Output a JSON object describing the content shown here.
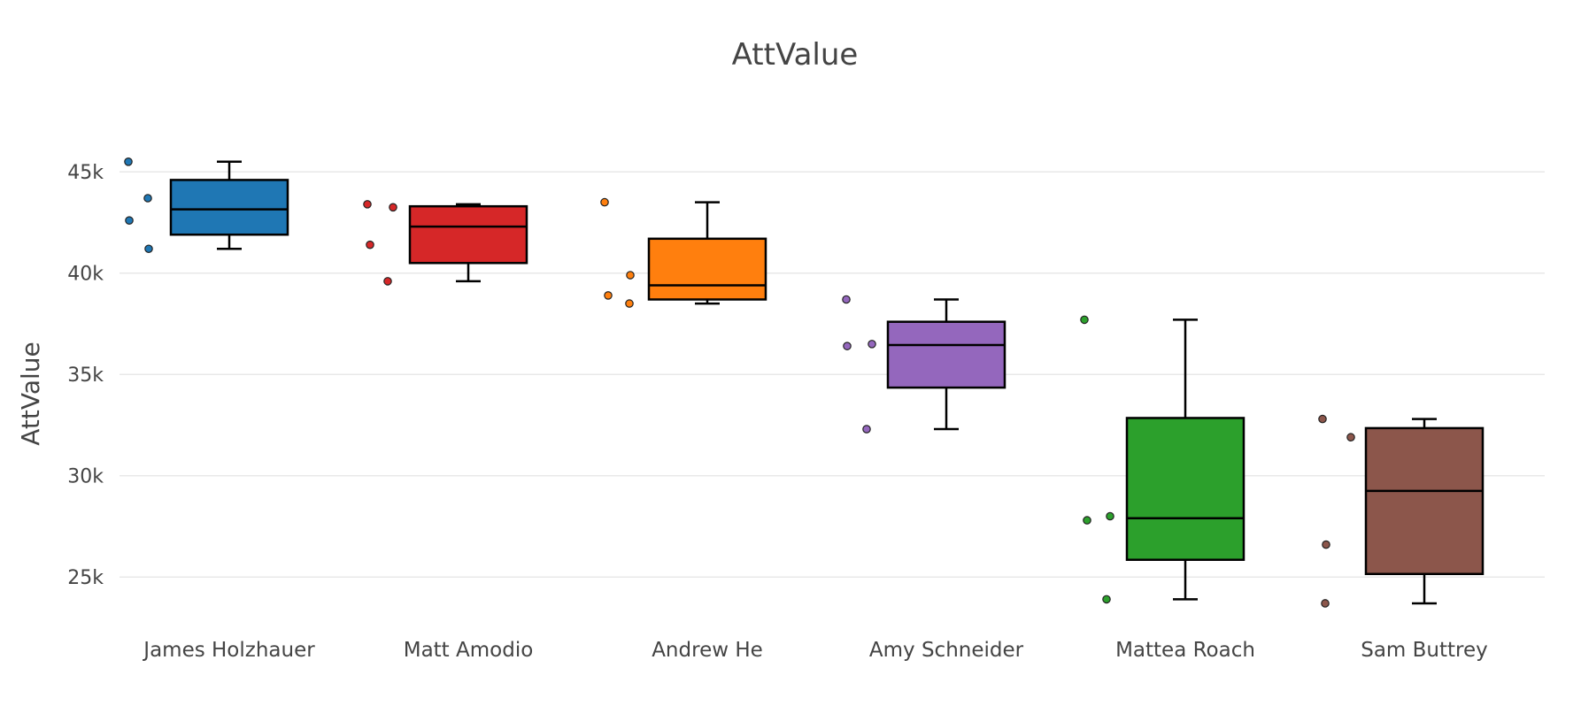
{
  "chart_data": {
    "type": "box",
    "title": "AttValue",
    "xlabel": "",
    "ylabel": "AttValue",
    "ylim": [
      23000,
      47500
    ],
    "y_ticks": [
      25000,
      30000,
      35000,
      40000,
      45000
    ],
    "y_tick_labels": [
      "25k",
      "30k",
      "35k",
      "40k",
      "45k"
    ],
    "grid": true,
    "boxpoints": "all",
    "categories": [
      "James Holzhauer",
      "Matt Amodio",
      "Andrew He",
      "Amy Schneider",
      "Mattea Roach",
      "Sam Buttrey"
    ],
    "series": [
      {
        "name": "James Holzhauer",
        "color": "#1f77b4",
        "points": [
          45500,
          43700,
          42600,
          41200
        ],
        "q1": 41900,
        "median": 43150,
        "q3": 44600,
        "whisker_low": 41200,
        "whisker_high": 45500
      },
      {
        "name": "Matt Amodio",
        "color": "#d62728",
        "points": [
          43400,
          43250,
          41400,
          39600
        ],
        "q1": 40500,
        "median": 42300,
        "q3": 43300,
        "whisker_low": 39600,
        "whisker_high": 43400
      },
      {
        "name": "Andrew He",
        "color": "#ff7f0e",
        "points": [
          43500,
          39900,
          38900,
          38500
        ],
        "q1": 38700,
        "median": 39400,
        "q3": 41700,
        "whisker_low": 38500,
        "whisker_high": 43500
      },
      {
        "name": "Amy Schneider",
        "color": "#9467bd",
        "points": [
          38700,
          36500,
          36400,
          32300
        ],
        "q1": 34350,
        "median": 36450,
        "q3": 37600,
        "whisker_low": 32300,
        "whisker_high": 38700
      },
      {
        "name": "Mattea Roach",
        "color": "#2ca02c",
        "points": [
          37700,
          28000,
          27800,
          23900
        ],
        "q1": 25850,
        "median": 27900,
        "q3": 32850,
        "whisker_low": 23900,
        "whisker_high": 37700
      },
      {
        "name": "Sam Buttrey",
        "color": "#8c564b",
        "points": [
          32800,
          31900,
          26600,
          23700
        ],
        "q1": 25150,
        "median": 29250,
        "q3": 32350,
        "whisker_low": 23700,
        "whisker_high": 32800
      }
    ]
  }
}
